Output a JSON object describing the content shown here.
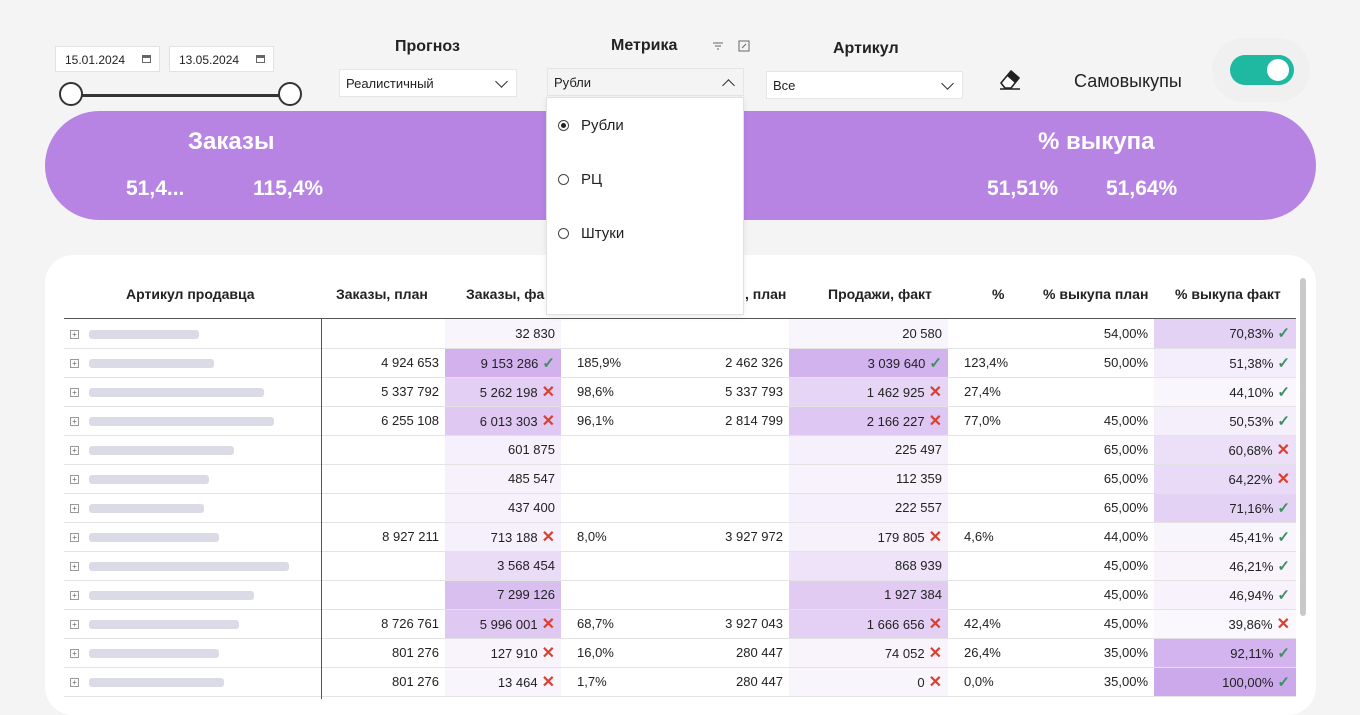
{
  "date_filter": {
    "start": "15.01.2024",
    "end": "13.05.2024"
  },
  "forecast": {
    "label": "Прогноз",
    "value": "Реалистичный"
  },
  "metric": {
    "label": "Метрика",
    "value": "Рубли",
    "options": [
      "Рубли",
      "РЦ",
      "Штуки"
    ],
    "selected": "Рубли"
  },
  "article": {
    "label": "Артикул",
    "value": "Все"
  },
  "self_buyouts": {
    "label": "Самовыкупы",
    "enabled": true
  },
  "kpi": {
    "orders": {
      "title": "Заказы",
      "value": "51,4...",
      "percent": "115,4%"
    },
    "buyout": {
      "title": "% выкупа",
      "value1": "51,51%",
      "value2": "51,64%"
    }
  },
  "table": {
    "columns": [
      "Артикул продавца",
      "Заказы, план",
      "Заказы, фа",
      ", план",
      "Продажи, факт",
      "%",
      "% выкупа план",
      "% выкупа факт"
    ],
    "rows": [
      {
        "orders_plan": "",
        "orders_fact": "32 830",
        "of_status": "",
        "orders_pct": "",
        "sales_plan": "",
        "sales_fact": "20 580",
        "sf_status": "",
        "sales_pct": "",
        "buyout_plan": "54,00%",
        "buyout_fact": "70,83%",
        "bf_status": "ok"
      },
      {
        "orders_plan": "4 924 653",
        "orders_fact": "9 153 286",
        "of_status": "ok",
        "orders_pct": "185,9%",
        "sales_plan": "2 462 326",
        "sales_fact": "3 039 640",
        "sf_status": "ok",
        "sales_pct": "123,4%",
        "buyout_plan": "50,00%",
        "buyout_fact": "51,38%",
        "bf_status": "ok"
      },
      {
        "orders_plan": "5 337 792",
        "orders_fact": "5 262 198",
        "of_status": "bad",
        "orders_pct": "98,6%",
        "sales_plan": "5 337 793",
        "sales_fact": "1 462 925",
        "sf_status": "bad",
        "sales_pct": "27,4%",
        "buyout_plan": "",
        "buyout_fact": "44,10%",
        "bf_status": "ok"
      },
      {
        "orders_plan": "6 255 108",
        "orders_fact": "6 013 303",
        "of_status": "bad",
        "orders_pct": "96,1%",
        "sales_plan": "2 814 799",
        "sales_fact": "2 166 227",
        "sf_status": "bad",
        "sales_pct": "77,0%",
        "buyout_plan": "45,00%",
        "buyout_fact": "50,53%",
        "bf_status": "ok"
      },
      {
        "orders_plan": "",
        "orders_fact": "601 875",
        "of_status": "",
        "orders_pct": "",
        "sales_plan": "",
        "sales_fact": "225 497",
        "sf_status": "",
        "sales_pct": "",
        "buyout_plan": "65,00%",
        "buyout_fact": "60,68%",
        "bf_status": "bad"
      },
      {
        "orders_plan": "",
        "orders_fact": "485 547",
        "of_status": "",
        "orders_pct": "",
        "sales_plan": "",
        "sales_fact": "112 359",
        "sf_status": "",
        "sales_pct": "",
        "buyout_plan": "65,00%",
        "buyout_fact": "64,22%",
        "bf_status": "bad"
      },
      {
        "orders_plan": "",
        "orders_fact": "437 400",
        "of_status": "",
        "orders_pct": "",
        "sales_plan": "",
        "sales_fact": "222 557",
        "sf_status": "",
        "sales_pct": "",
        "buyout_plan": "65,00%",
        "buyout_fact": "71,16%",
        "bf_status": "ok"
      },
      {
        "orders_plan": "8 927 211",
        "orders_fact": "713 188",
        "of_status": "bad",
        "orders_pct": "8,0%",
        "sales_plan": "3 927 972",
        "sales_fact": "179 805",
        "sf_status": "bad",
        "sales_pct": "4,6%",
        "buyout_plan": "44,00%",
        "buyout_fact": "45,41%",
        "bf_status": "ok"
      },
      {
        "orders_plan": "",
        "orders_fact": "3 568 454",
        "of_status": "",
        "orders_pct": "",
        "sales_plan": "",
        "sales_fact": "868 939",
        "sf_status": "",
        "sales_pct": "",
        "buyout_plan": "45,00%",
        "buyout_fact": "46,21%",
        "bf_status": "ok"
      },
      {
        "orders_plan": "",
        "orders_fact": "7 299 126",
        "of_status": "",
        "orders_pct": "",
        "sales_plan": "",
        "sales_fact": "1 927 384",
        "sf_status": "",
        "sales_pct": "",
        "buyout_plan": "45,00%",
        "buyout_fact": "46,94%",
        "bf_status": "ok"
      },
      {
        "orders_plan": "8 726 761",
        "orders_fact": "5 996 001",
        "of_status": "bad",
        "orders_pct": "68,7%",
        "sales_plan": "3 927 043",
        "sales_fact": "1 666 656",
        "sf_status": "bad",
        "sales_pct": "42,4%",
        "buyout_plan": "45,00%",
        "buyout_fact": "39,86%",
        "bf_status": "bad"
      },
      {
        "orders_plan": "801 276",
        "orders_fact": "127 910",
        "of_status": "bad",
        "orders_pct": "16,0%",
        "sales_plan": "280 447",
        "sales_fact": "74 052",
        "sf_status": "bad",
        "sales_pct": "26,4%",
        "buyout_plan": "35,00%",
        "buyout_fact": "92,11%",
        "bf_status": "ok"
      },
      {
        "orders_plan": "801 276",
        "orders_fact": "13 464",
        "of_status": "bad",
        "orders_pct": "1,7%",
        "sales_plan": "280 447",
        "sales_fact": "0",
        "sf_status": "bad",
        "sales_pct": "0,0%",
        "buyout_plan": "35,00%",
        "buyout_fact": "100,00%",
        "bf_status": "ok"
      }
    ]
  },
  "colors": {
    "banner": "#b784e3",
    "toggle_on": "#1fb8a0",
    "ok": "#3f8f62",
    "bad": "#d9412f"
  }
}
